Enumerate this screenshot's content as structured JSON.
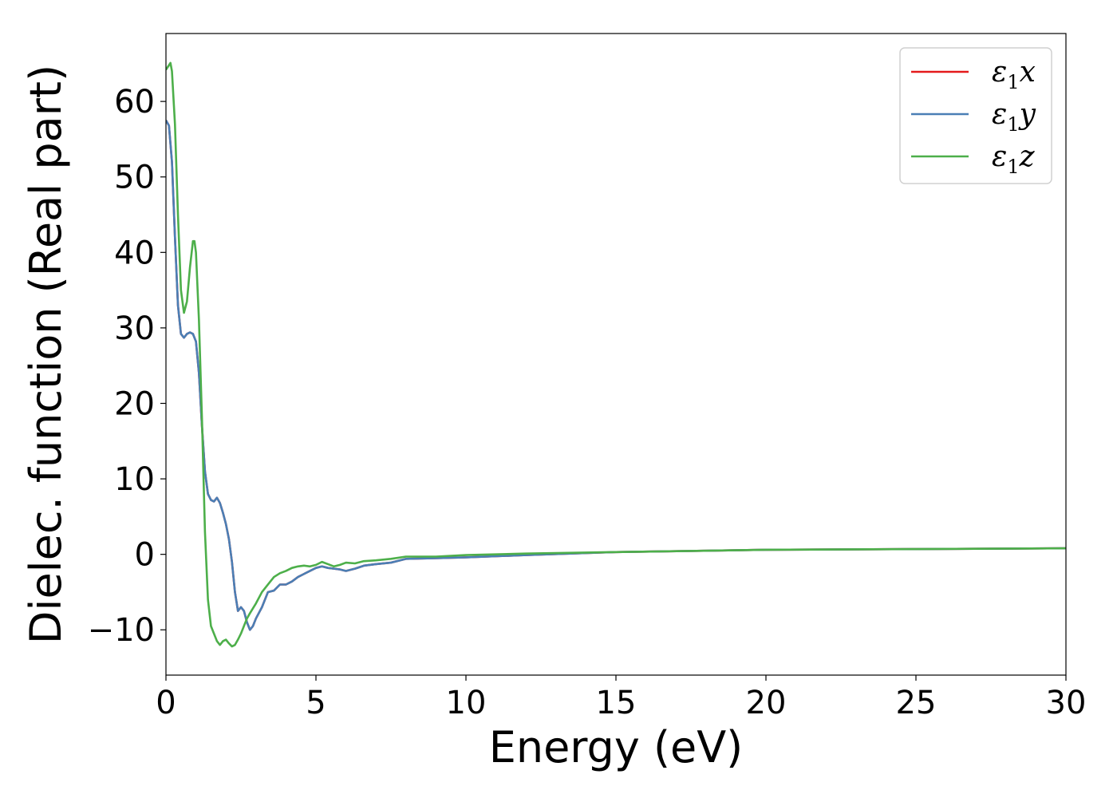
{
  "chart_data": {
    "type": "line",
    "title": "",
    "xlabel": "Energy (eV)",
    "ylabel": "Dielec. function (Real part)",
    "xlim": [
      0,
      30
    ],
    "ylim": [
      -16,
      69
    ],
    "xticks": [
      0,
      5,
      10,
      15,
      20,
      25,
      30
    ],
    "xtick_labels": [
      "0",
      "5",
      "10",
      "15",
      "20",
      "25",
      "30"
    ],
    "yticks": [
      -10,
      0,
      10,
      20,
      30,
      40,
      50,
      60
    ],
    "ytick_labels": [
      "−10",
      "0",
      "10",
      "20",
      "30",
      "40",
      "50",
      "60"
    ],
    "grid": false,
    "legend_position": "top-right",
    "series": [
      {
        "name": "ε₁x",
        "legend_base": "ε",
        "legend_sub": "1",
        "legend_var": "x",
        "color": "#e41a1c",
        "x": [
          0,
          0.1,
          0.2,
          0.3,
          0.4,
          0.5,
          0.6,
          0.7,
          0.8,
          0.9,
          1.0,
          1.1,
          1.2,
          1.3,
          1.4,
          1.5,
          1.6,
          1.7,
          1.8,
          1.9,
          2.0,
          2.1,
          2.2,
          2.3,
          2.4,
          2.5,
          2.6,
          2.7,
          2.8,
          2.9,
          3.0,
          3.2,
          3.4,
          3.6,
          3.8,
          4.0,
          4.2,
          4.4,
          4.6,
          4.8,
          5.0,
          5.2,
          5.4,
          5.6,
          5.8,
          6.0,
          6.3,
          6.6,
          7.0,
          7.5,
          8.0,
          9.0,
          10,
          12,
          15,
          20,
          25,
          30
        ],
        "y": [
          57.5,
          56.8,
          52,
          42,
          33,
          29.2,
          28.7,
          29.2,
          29.4,
          29.2,
          28.2,
          24,
          17,
          11,
          8,
          7.2,
          7.0,
          7.5,
          6.8,
          5.5,
          4.0,
          2.0,
          -1.0,
          -5.0,
          -7.5,
          -7.0,
          -7.5,
          -9.0,
          -10.0,
          -9.5,
          -8.5,
          -7.0,
          -5.0,
          -4.8,
          -4.0,
          -4.0,
          -3.6,
          -3.0,
          -2.6,
          -2.2,
          -1.8,
          -1.6,
          -1.8,
          -1.9,
          -2.0,
          -2.2,
          -1.9,
          -1.5,
          -1.3,
          -1.1,
          -0.6,
          -0.5,
          -0.4,
          -0.1,
          0.3,
          0.6,
          0.7,
          0.8
        ]
      },
      {
        "name": "ε₁y",
        "legend_base": "ε",
        "legend_sub": "1",
        "legend_var": "y",
        "color": "#4a7fb5",
        "x": [
          0,
          0.1,
          0.2,
          0.3,
          0.4,
          0.5,
          0.6,
          0.7,
          0.8,
          0.9,
          1.0,
          1.1,
          1.2,
          1.3,
          1.4,
          1.5,
          1.6,
          1.7,
          1.8,
          1.9,
          2.0,
          2.1,
          2.2,
          2.3,
          2.4,
          2.5,
          2.6,
          2.7,
          2.8,
          2.9,
          3.0,
          3.2,
          3.4,
          3.6,
          3.8,
          4.0,
          4.2,
          4.4,
          4.6,
          4.8,
          5.0,
          5.2,
          5.4,
          5.6,
          5.8,
          6.0,
          6.3,
          6.6,
          7.0,
          7.5,
          8.0,
          9.0,
          10,
          12,
          15,
          20,
          25,
          30
        ],
        "y": [
          57.5,
          56.8,
          52,
          42,
          33,
          29.2,
          28.7,
          29.2,
          29.4,
          29.2,
          28.2,
          24,
          17,
          11,
          8,
          7.2,
          7.0,
          7.5,
          6.8,
          5.5,
          4.0,
          2.0,
          -1.0,
          -5.0,
          -7.5,
          -7.0,
          -7.5,
          -9.0,
          -10.0,
          -9.5,
          -8.5,
          -7.0,
          -5.0,
          -4.8,
          -4.0,
          -4.0,
          -3.6,
          -3.0,
          -2.6,
          -2.2,
          -1.8,
          -1.6,
          -1.8,
          -1.9,
          -2.0,
          -2.2,
          -1.9,
          -1.5,
          -1.3,
          -1.1,
          -0.6,
          -0.5,
          -0.4,
          -0.1,
          0.3,
          0.6,
          0.7,
          0.8
        ]
      },
      {
        "name": "ε₁z",
        "legend_base": "ε",
        "legend_sub": "1",
        "legend_var": "z",
        "color": "#4daf4a",
        "x": [
          0,
          0.1,
          0.15,
          0.2,
          0.3,
          0.4,
          0.5,
          0.6,
          0.7,
          0.8,
          0.9,
          0.95,
          1.0,
          1.1,
          1.2,
          1.3,
          1.4,
          1.5,
          1.6,
          1.7,
          1.8,
          1.9,
          2.0,
          2.1,
          2.2,
          2.3,
          2.4,
          2.5,
          2.6,
          2.7,
          2.8,
          3.0,
          3.2,
          3.4,
          3.6,
          3.8,
          4.0,
          4.2,
          4.4,
          4.6,
          4.8,
          5.0,
          5.2,
          5.4,
          5.6,
          5.8,
          6.0,
          6.3,
          6.6,
          7.0,
          7.5,
          8.0,
          9.0,
          10,
          12,
          15,
          20,
          25,
          30
        ],
        "y": [
          64.2,
          64.8,
          65.1,
          64.0,
          57,
          45,
          35,
          32,
          33.5,
          38,
          41.5,
          41.5,
          40,
          31,
          18,
          3,
          -6,
          -9.5,
          -10.5,
          -11.5,
          -12.0,
          -11.5,
          -11.3,
          -11.8,
          -12.2,
          -12.0,
          -11.3,
          -10.5,
          -9.5,
          -8.5,
          -7.8,
          -6.5,
          -5.0,
          -4.0,
          -3.0,
          -2.5,
          -2.2,
          -1.8,
          -1.6,
          -1.5,
          -1.6,
          -1.4,
          -1.0,
          -1.3,
          -1.6,
          -1.4,
          -1.1,
          -1.2,
          -0.9,
          -0.8,
          -0.6,
          -0.3,
          -0.3,
          -0.1,
          0.1,
          0.3,
          0.6,
          0.7,
          0.8
        ]
      }
    ]
  }
}
